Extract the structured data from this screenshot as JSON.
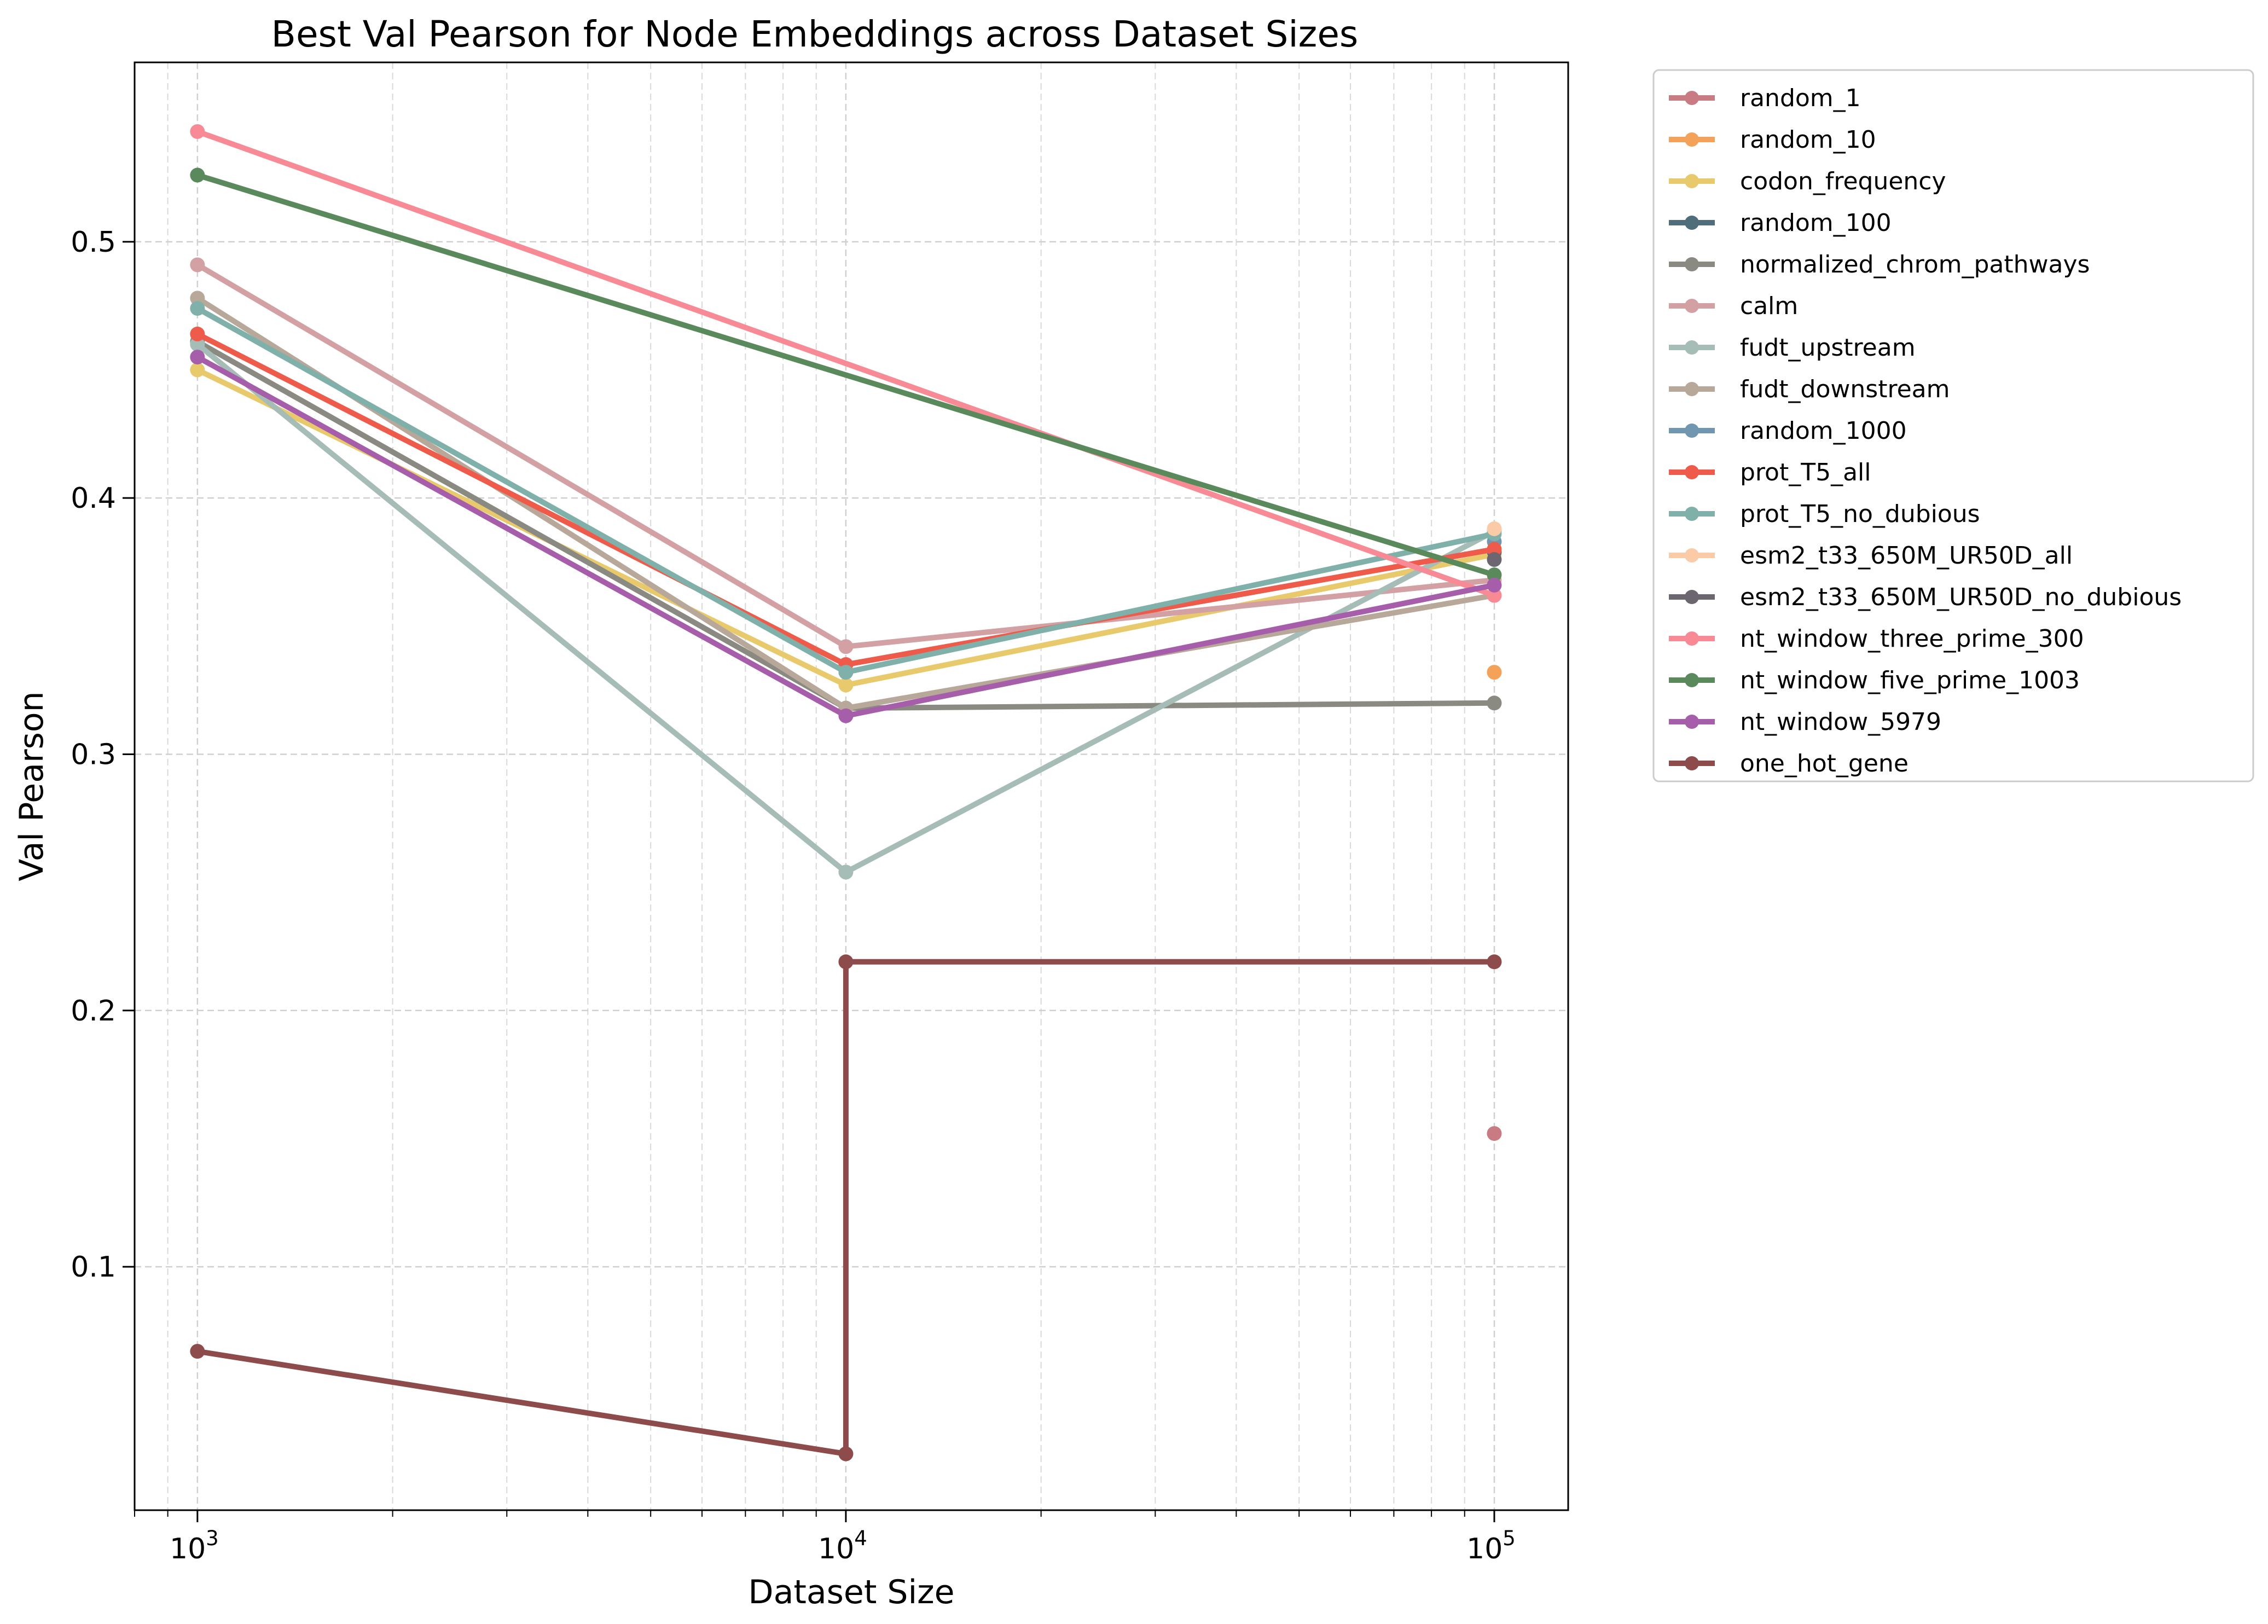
{
  "chart_data": {
    "type": "line",
    "title": "Best Val Pearson for Node Embeddings across Dataset Sizes",
    "xlabel": "Dataset Size",
    "ylabel": "Val Pearson",
    "x_scale": "log",
    "xlim": [
      800,
      130000
    ],
    "ylim": [
      0.005,
      0.57
    ],
    "x_ticks": [
      {
        "value": 1000,
        "base": "10",
        "exp": "3"
      },
      {
        "value": 10000,
        "base": "10",
        "exp": "4"
      },
      {
        "value": 100000,
        "base": "10",
        "exp": "5"
      }
    ],
    "y_ticks": [
      {
        "value": 0.1,
        "label": "0.1"
      },
      {
        "value": 0.2,
        "label": "0.2"
      },
      {
        "value": 0.3,
        "label": "0.3"
      },
      {
        "value": 0.4,
        "label": "0.4"
      },
      {
        "value": 0.5,
        "label": "0.5"
      }
    ],
    "grid": true,
    "legend_position": "outside-right",
    "series": [
      {
        "name": "random_1",
        "color": "#c97b84",
        "points": [
          [
            100000,
            0.152
          ]
        ]
      },
      {
        "name": "random_10",
        "color": "#f4a259",
        "points": [
          [
            100000,
            0.332
          ]
        ]
      },
      {
        "name": "codon_frequency",
        "color": "#e8c96b",
        "points": [
          [
            1000,
            0.45
          ],
          [
            10000,
            0.327
          ],
          [
            100000,
            0.378
          ]
        ]
      },
      {
        "name": "random_100",
        "color": "#4f6d7a",
        "points": [
          [
            100000,
            0.379
          ]
        ]
      },
      {
        "name": "normalized_chrom_pathways",
        "color": "#8a8a82",
        "points": [
          [
            1000,
            0.461
          ],
          [
            10000,
            0.318
          ],
          [
            100000,
            0.32
          ]
        ]
      },
      {
        "name": "calm",
        "color": "#d3a1a4",
        "points": [
          [
            1000,
            0.491
          ],
          [
            10000,
            0.342
          ],
          [
            100000,
            0.368
          ]
        ]
      },
      {
        "name": "fudt_upstream",
        "color": "#a6bcb6",
        "points": [
          [
            1000,
            0.46
          ],
          [
            10000,
            0.254
          ],
          [
            100000,
            0.387
          ]
        ]
      },
      {
        "name": "fudt_downstream",
        "color": "#b8a89a",
        "points": [
          [
            1000,
            0.478
          ],
          [
            10000,
            0.318
          ],
          [
            100000,
            0.362
          ]
        ]
      },
      {
        "name": "random_1000",
        "color": "#7197b0",
        "points": [
          [
            100000,
            0.383
          ]
        ]
      },
      {
        "name": "prot_T5_all",
        "color": "#ef5b4b",
        "points": [
          [
            1000,
            0.464
          ],
          [
            10000,
            0.335
          ],
          [
            100000,
            0.38
          ]
        ]
      },
      {
        "name": "prot_T5_no_dubious",
        "color": "#80b0aa",
        "points": [
          [
            1000,
            0.474
          ],
          [
            10000,
            0.332
          ],
          [
            100000,
            0.386
          ]
        ]
      },
      {
        "name": "esm2_t33_650M_UR50D_all",
        "color": "#fbcba7",
        "points": [
          [
            100000,
            0.388
          ]
        ]
      },
      {
        "name": "esm2_t33_650M_UR50D_no_dubious",
        "color": "#6b6670",
        "points": [
          [
            100000,
            0.376
          ]
        ]
      },
      {
        "name": "nt_window_three_prime_300",
        "color": "#f88a95",
        "points": [
          [
            1000,
            0.543
          ],
          [
            100000,
            0.362
          ]
        ]
      },
      {
        "name": "nt_window_five_prime_1003",
        "color": "#5a8a5b",
        "points": [
          [
            1000,
            0.526
          ],
          [
            100000,
            0.37
          ]
        ]
      },
      {
        "name": "nt_window_5979",
        "color": "#a65eaa",
        "points": [
          [
            1000,
            0.455
          ],
          [
            10000,
            0.315
          ],
          [
            100000,
            0.366
          ]
        ]
      },
      {
        "name": "one_hot_gene",
        "color": "#8e4b4b",
        "points": [
          [
            1000,
            0.067
          ],
          [
            10000,
            0.027
          ],
          [
            10000,
            0.219
          ],
          [
            100000,
            0.219
          ]
        ]
      }
    ]
  }
}
